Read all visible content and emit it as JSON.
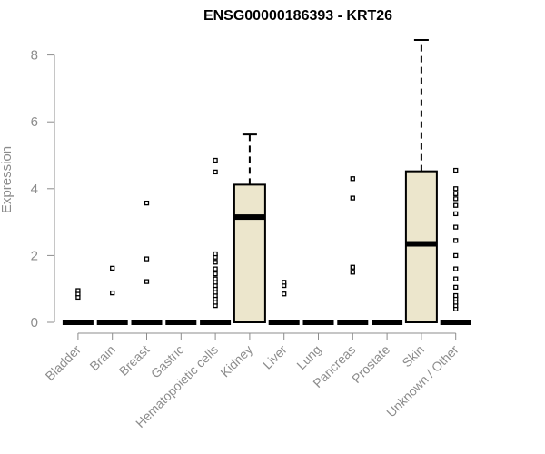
{
  "chart_data": {
    "type": "boxplot",
    "title": "ENSG00000186393 - KRT26",
    "ylabel": "Expression",
    "xlabel": "",
    "ylim": [
      0,
      8.6
    ],
    "yticks": [
      0,
      2,
      4,
      6,
      8
    ],
    "box_fill": "#ece6cc",
    "categories": [
      "Bladder",
      "Brain",
      "Breast",
      "Gastric",
      "Hematopoietic cells",
      "Kidney",
      "Liver",
      "Lung",
      "Pancreas",
      "Prostate",
      "Skin",
      "Unknown / Other"
    ],
    "boxes": [
      {
        "q1": 0,
        "median": 0,
        "q3": 0,
        "whisker_low": 0,
        "whisker_high": 0,
        "outliers": [
          0.75,
          0.85,
          0.95
        ]
      },
      {
        "q1": 0,
        "median": 0,
        "q3": 0,
        "whisker_low": 0,
        "whisker_high": 0,
        "outliers": [
          0.88,
          1.62
        ]
      },
      {
        "q1": 0,
        "median": 0,
        "q3": 0,
        "whisker_low": 0,
        "whisker_high": 0,
        "outliers": [
          1.22,
          1.9,
          3.57
        ]
      },
      {
        "q1": 0,
        "median": 0,
        "q3": 0,
        "whisker_low": 0,
        "whisker_high": 0,
        "outliers": []
      },
      {
        "q1": 0,
        "median": 0,
        "q3": 0,
        "whisker_low": 0,
        "whisker_high": 0,
        "outliers": [
          0.5,
          0.6,
          0.7,
          0.8,
          0.9,
          1.0,
          1.1,
          1.2,
          1.3,
          1.45,
          1.6,
          1.8,
          1.95,
          2.05,
          4.5,
          4.85
        ]
      },
      {
        "q1": 0,
        "median": 3.15,
        "q3": 4.12,
        "whisker_low": 0,
        "whisker_high": 5.62,
        "outliers": []
      },
      {
        "q1": 0,
        "median": 0,
        "q3": 0,
        "whisker_low": 0,
        "whisker_high": 0,
        "outliers": [
          0.85,
          1.1,
          1.2
        ]
      },
      {
        "q1": 0,
        "median": 0,
        "q3": 0,
        "whisker_low": 0,
        "whisker_high": 0,
        "outliers": []
      },
      {
        "q1": 0,
        "median": 0,
        "q3": 0,
        "whisker_low": 0,
        "whisker_high": 0,
        "outliers": [
          1.5,
          1.65,
          3.72,
          4.3
        ]
      },
      {
        "q1": 0,
        "median": 0,
        "q3": 0,
        "whisker_low": 0,
        "whisker_high": 0,
        "outliers": []
      },
      {
        "q1": 0,
        "median": 2.35,
        "q3": 4.52,
        "whisker_low": 0,
        "whisker_high": 8.45,
        "outliers": []
      },
      {
        "q1": 0,
        "median": 0,
        "q3": 0,
        "whisker_low": 0,
        "whisker_high": 0,
        "outliers": [
          0.4,
          0.5,
          0.6,
          0.7,
          0.8,
          1.05,
          1.3,
          1.6,
          2.0,
          2.45,
          2.85,
          3.25,
          3.5,
          3.7,
          3.85,
          4.0,
          4.55
        ]
      }
    ]
  }
}
